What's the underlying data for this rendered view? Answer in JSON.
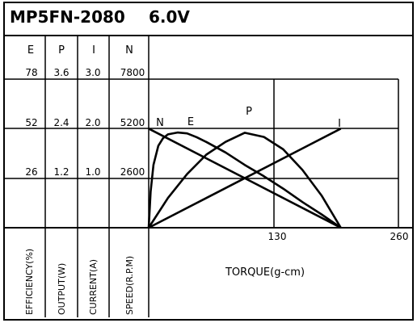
{
  "chart_data": {
    "type": "line",
    "title": "MP5FN-2080",
    "voltage": "6.0V",
    "xlabel": "TORQUE(g-cm)",
    "x_ticks": [
      "130",
      "260"
    ],
    "xlim": [
      0,
      260
    ],
    "columns": [
      {
        "letter": "E",
        "label": "EFFICIENCY(%)",
        "ticks": [
          "78",
          "52",
          "26"
        ],
        "ylim": [
          0,
          78
        ]
      },
      {
        "letter": "P",
        "label": "OUTPUT(W)",
        "ticks": [
          "3.6",
          "2.4",
          "1.2"
        ],
        "ylim": [
          0,
          3.6
        ]
      },
      {
        "letter": "I",
        "label": "CURRENT(A)",
        "ticks": [
          "3.0",
          "2.0",
          "1.0"
        ],
        "ylim": [
          0,
          3.0
        ]
      },
      {
        "letter": "N",
        "label": "SPEED(R.P.M)",
        "ticks": [
          "7800",
          "5200",
          "2600"
        ],
        "ylim": [
          0,
          7800
        ]
      }
    ],
    "series": [
      {
        "name": "N",
        "x": [
          0,
          200
        ],
        "y": [
          5200,
          0
        ]
      },
      {
        "name": "I",
        "x": [
          0,
          200
        ],
        "y": [
          0,
          2.0
        ]
      },
      {
        "name": "P",
        "x": [
          0,
          20,
          40,
          60,
          80,
          100,
          120,
          140,
          160,
          180,
          200
        ],
        "y": [
          0,
          0.72,
          1.3,
          1.77,
          2.08,
          2.3,
          2.2,
          1.9,
          1.4,
          0.78,
          0
        ]
      },
      {
        "name": "E",
        "x": [
          0,
          2,
          5,
          10,
          15,
          20,
          30,
          40,
          50,
          60,
          80,
          100,
          120,
          140,
          160,
          180,
          200
        ],
        "y": [
          0,
          19,
          33,
          43,
          47,
          49,
          50,
          49.5,
          47.5,
          45,
          39.5,
          33,
          27,
          20.5,
          13.5,
          7,
          0
        ]
      }
    ]
  }
}
